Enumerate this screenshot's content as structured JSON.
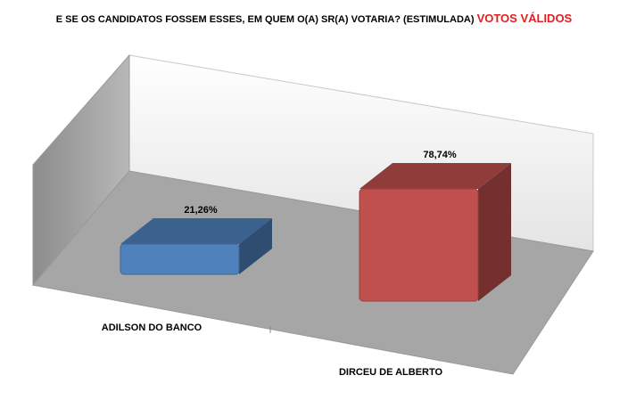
{
  "chart_data": {
    "type": "bar3d",
    "title": "E SE OS CANDIDATOS FOSSEM ESSES, EM QUEM O(A) SR(A) VOTARIA? (ESTIMULADA)",
    "subtitle": "VOTOS VÁLIDOS",
    "categories": [
      "ADILSON DO BANCO",
      "DIRCEU DE ALBERTO"
    ],
    "values": [
      21.26,
      78.74
    ],
    "value_labels": [
      "21,26%",
      "78,74%"
    ],
    "colors": [
      "#4f81bd",
      "#c0504d"
    ]
  }
}
